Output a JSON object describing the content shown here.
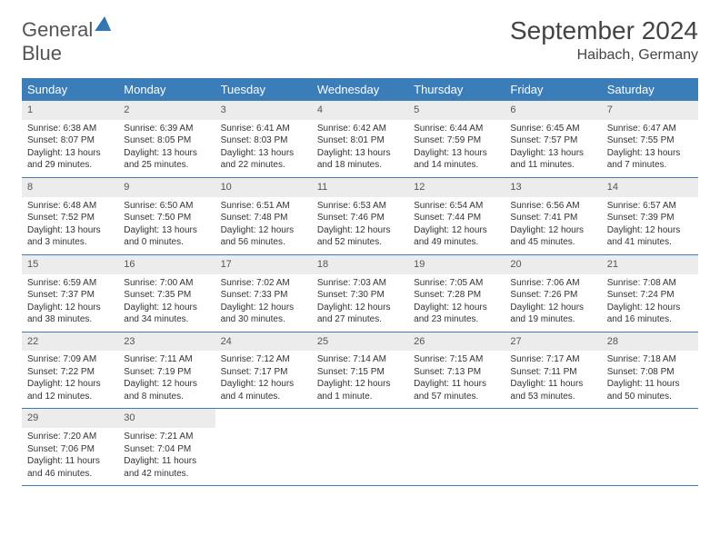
{
  "logo": {
    "line1": "General",
    "line2": "Blue"
  },
  "title": "September 2024",
  "location": "Haibach, Germany",
  "colors": {
    "header_bg": "#3a7db8",
    "daynum_bg": "#ececec",
    "text": "#333333",
    "rule": "#3a7db8"
  },
  "day_names": [
    "Sunday",
    "Monday",
    "Tuesday",
    "Wednesday",
    "Thursday",
    "Friday",
    "Saturday"
  ],
  "weeks": [
    [
      {
        "n": "1",
        "sr": "Sunrise: 6:38 AM",
        "ss": "Sunset: 8:07 PM",
        "dl": "Daylight: 13 hours and 29 minutes."
      },
      {
        "n": "2",
        "sr": "Sunrise: 6:39 AM",
        "ss": "Sunset: 8:05 PM",
        "dl": "Daylight: 13 hours and 25 minutes."
      },
      {
        "n": "3",
        "sr": "Sunrise: 6:41 AM",
        "ss": "Sunset: 8:03 PM",
        "dl": "Daylight: 13 hours and 22 minutes."
      },
      {
        "n": "4",
        "sr": "Sunrise: 6:42 AM",
        "ss": "Sunset: 8:01 PM",
        "dl": "Daylight: 13 hours and 18 minutes."
      },
      {
        "n": "5",
        "sr": "Sunrise: 6:44 AM",
        "ss": "Sunset: 7:59 PM",
        "dl": "Daylight: 13 hours and 14 minutes."
      },
      {
        "n": "6",
        "sr": "Sunrise: 6:45 AM",
        "ss": "Sunset: 7:57 PM",
        "dl": "Daylight: 13 hours and 11 minutes."
      },
      {
        "n": "7",
        "sr": "Sunrise: 6:47 AM",
        "ss": "Sunset: 7:55 PM",
        "dl": "Daylight: 13 hours and 7 minutes."
      }
    ],
    [
      {
        "n": "8",
        "sr": "Sunrise: 6:48 AM",
        "ss": "Sunset: 7:52 PM",
        "dl": "Daylight: 13 hours and 3 minutes."
      },
      {
        "n": "9",
        "sr": "Sunrise: 6:50 AM",
        "ss": "Sunset: 7:50 PM",
        "dl": "Daylight: 13 hours and 0 minutes."
      },
      {
        "n": "10",
        "sr": "Sunrise: 6:51 AM",
        "ss": "Sunset: 7:48 PM",
        "dl": "Daylight: 12 hours and 56 minutes."
      },
      {
        "n": "11",
        "sr": "Sunrise: 6:53 AM",
        "ss": "Sunset: 7:46 PM",
        "dl": "Daylight: 12 hours and 52 minutes."
      },
      {
        "n": "12",
        "sr": "Sunrise: 6:54 AM",
        "ss": "Sunset: 7:44 PM",
        "dl": "Daylight: 12 hours and 49 minutes."
      },
      {
        "n": "13",
        "sr": "Sunrise: 6:56 AM",
        "ss": "Sunset: 7:41 PM",
        "dl": "Daylight: 12 hours and 45 minutes."
      },
      {
        "n": "14",
        "sr": "Sunrise: 6:57 AM",
        "ss": "Sunset: 7:39 PM",
        "dl": "Daylight: 12 hours and 41 minutes."
      }
    ],
    [
      {
        "n": "15",
        "sr": "Sunrise: 6:59 AM",
        "ss": "Sunset: 7:37 PM",
        "dl": "Daylight: 12 hours and 38 minutes."
      },
      {
        "n": "16",
        "sr": "Sunrise: 7:00 AM",
        "ss": "Sunset: 7:35 PM",
        "dl": "Daylight: 12 hours and 34 minutes."
      },
      {
        "n": "17",
        "sr": "Sunrise: 7:02 AM",
        "ss": "Sunset: 7:33 PM",
        "dl": "Daylight: 12 hours and 30 minutes."
      },
      {
        "n": "18",
        "sr": "Sunrise: 7:03 AM",
        "ss": "Sunset: 7:30 PM",
        "dl": "Daylight: 12 hours and 27 minutes."
      },
      {
        "n": "19",
        "sr": "Sunrise: 7:05 AM",
        "ss": "Sunset: 7:28 PM",
        "dl": "Daylight: 12 hours and 23 minutes."
      },
      {
        "n": "20",
        "sr": "Sunrise: 7:06 AM",
        "ss": "Sunset: 7:26 PM",
        "dl": "Daylight: 12 hours and 19 minutes."
      },
      {
        "n": "21",
        "sr": "Sunrise: 7:08 AM",
        "ss": "Sunset: 7:24 PM",
        "dl": "Daylight: 12 hours and 16 minutes."
      }
    ],
    [
      {
        "n": "22",
        "sr": "Sunrise: 7:09 AM",
        "ss": "Sunset: 7:22 PM",
        "dl": "Daylight: 12 hours and 12 minutes."
      },
      {
        "n": "23",
        "sr": "Sunrise: 7:11 AM",
        "ss": "Sunset: 7:19 PM",
        "dl": "Daylight: 12 hours and 8 minutes."
      },
      {
        "n": "24",
        "sr": "Sunrise: 7:12 AM",
        "ss": "Sunset: 7:17 PM",
        "dl": "Daylight: 12 hours and 4 minutes."
      },
      {
        "n": "25",
        "sr": "Sunrise: 7:14 AM",
        "ss": "Sunset: 7:15 PM",
        "dl": "Daylight: 12 hours and 1 minute."
      },
      {
        "n": "26",
        "sr": "Sunrise: 7:15 AM",
        "ss": "Sunset: 7:13 PM",
        "dl": "Daylight: 11 hours and 57 minutes."
      },
      {
        "n": "27",
        "sr": "Sunrise: 7:17 AM",
        "ss": "Sunset: 7:11 PM",
        "dl": "Daylight: 11 hours and 53 minutes."
      },
      {
        "n": "28",
        "sr": "Sunrise: 7:18 AM",
        "ss": "Sunset: 7:08 PM",
        "dl": "Daylight: 11 hours and 50 minutes."
      }
    ],
    [
      {
        "n": "29",
        "sr": "Sunrise: 7:20 AM",
        "ss": "Sunset: 7:06 PM",
        "dl": "Daylight: 11 hours and 46 minutes."
      },
      {
        "n": "30",
        "sr": "Sunrise: 7:21 AM",
        "ss": "Sunset: 7:04 PM",
        "dl": "Daylight: 11 hours and 42 minutes."
      },
      {
        "n": "",
        "sr": "",
        "ss": "",
        "dl": ""
      },
      {
        "n": "",
        "sr": "",
        "ss": "",
        "dl": ""
      },
      {
        "n": "",
        "sr": "",
        "ss": "",
        "dl": ""
      },
      {
        "n": "",
        "sr": "",
        "ss": "",
        "dl": ""
      },
      {
        "n": "",
        "sr": "",
        "ss": "",
        "dl": ""
      }
    ]
  ]
}
